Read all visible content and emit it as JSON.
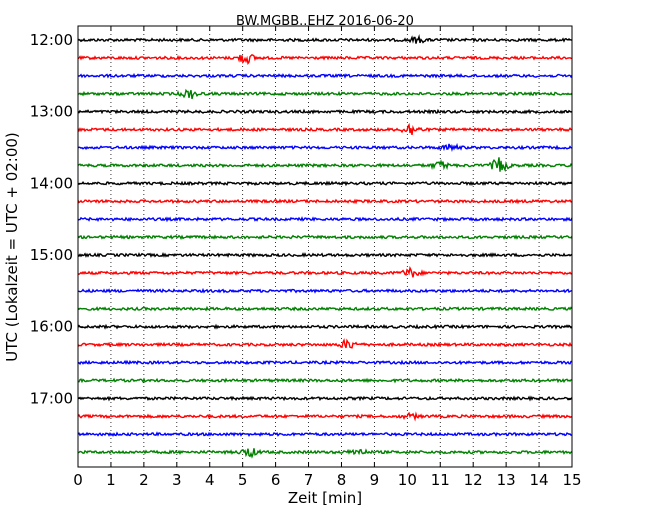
{
  "chart_data": {
    "type": "line",
    "title": "BW.MGBB..EHZ 2016-06-20",
    "xlabel": "Zeit  [min]",
    "ylabel": "UTC (Lokalzeit = UTC + 02:00)",
    "xlim": [
      0,
      15
    ],
    "x_ticks": [
      "0",
      "1",
      "2",
      "3",
      "4",
      "5",
      "6",
      "7",
      "8",
      "9",
      "10",
      "11",
      "12",
      "13",
      "14",
      "15"
    ],
    "y_ticks": [
      "12:00",
      "13:00",
      "14:00",
      "15:00",
      "16:00",
      "17:00"
    ],
    "grid": "vertical-dotted",
    "trace_colors": [
      "#000000",
      "#ff0000",
      "#0000ff",
      "#008000"
    ],
    "traces": [
      {
        "start": "12:00",
        "color": "#000000",
        "events": [
          {
            "t": 10.3,
            "amp": 0.35
          }
        ]
      },
      {
        "start": "12:15",
        "color": "#ff0000",
        "events": [
          {
            "t": 5.1,
            "amp": 0.7
          }
        ]
      },
      {
        "start": "12:30",
        "color": "#0000ff",
        "events": []
      },
      {
        "start": "12:45",
        "color": "#008000",
        "events": [
          {
            "t": 3.4,
            "amp": 0.6
          }
        ]
      },
      {
        "start": "13:00",
        "color": "#000000",
        "events": []
      },
      {
        "start": "13:15",
        "color": "#ff0000",
        "events": [
          {
            "t": 10.1,
            "amp": 0.8
          }
        ]
      },
      {
        "start": "13:30",
        "color": "#0000ff",
        "events": [
          {
            "t": 11.3,
            "amp": 0.4
          }
        ]
      },
      {
        "start": "13:45",
        "color": "#008000",
        "events": [
          {
            "t": 12.8,
            "amp": 1.0
          },
          {
            "t": 11.0,
            "amp": 0.5
          }
        ]
      },
      {
        "start": "14:00",
        "color": "#000000",
        "events": []
      },
      {
        "start": "14:15",
        "color": "#ff0000",
        "events": []
      },
      {
        "start": "14:30",
        "color": "#0000ff",
        "events": []
      },
      {
        "start": "14:45",
        "color": "#008000",
        "events": []
      },
      {
        "start": "15:00",
        "color": "#000000",
        "events": []
      },
      {
        "start": "15:15",
        "color": "#ff0000",
        "events": [
          {
            "t": 10.1,
            "amp": 0.6
          }
        ]
      },
      {
        "start": "15:30",
        "color": "#0000ff",
        "events": []
      },
      {
        "start": "15:45",
        "color": "#008000",
        "events": []
      },
      {
        "start": "16:00",
        "color": "#000000",
        "events": []
      },
      {
        "start": "16:15",
        "color": "#ff0000",
        "events": [
          {
            "t": 8.2,
            "amp": 0.6
          }
        ]
      },
      {
        "start": "16:30",
        "color": "#0000ff",
        "events": []
      },
      {
        "start": "16:45",
        "color": "#008000",
        "events": []
      },
      {
        "start": "17:00",
        "color": "#000000",
        "events": []
      },
      {
        "start": "17:15",
        "color": "#ff0000",
        "events": [
          {
            "t": 10.1,
            "amp": 0.3
          }
        ]
      },
      {
        "start": "17:30",
        "color": "#0000ff",
        "events": []
      },
      {
        "start": "17:45",
        "color": "#008000",
        "events": [
          {
            "t": 5.2,
            "amp": 0.6
          },
          {
            "t": 8.5,
            "amp": 0.4
          }
        ]
      }
    ]
  }
}
